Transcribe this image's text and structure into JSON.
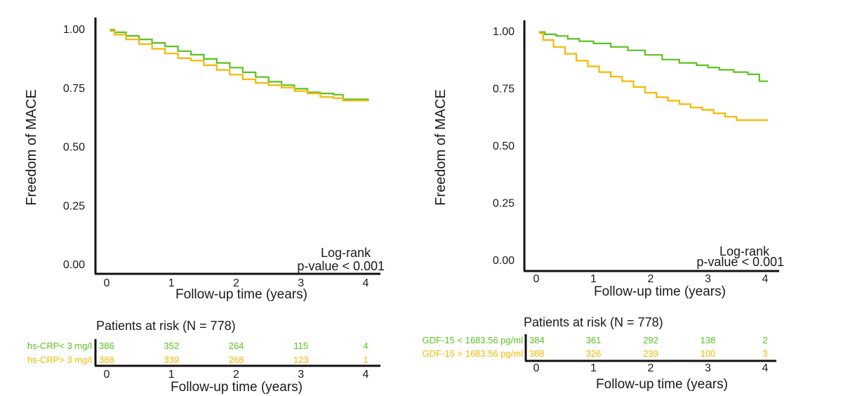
{
  "colors": {
    "green": "#5ac21e",
    "yellow": "#f5b800",
    "axis": "#111111"
  },
  "chart_data": [
    {
      "type": "line",
      "subtype": "kaplan-meier",
      "ylabel": "Freedom of MACE",
      "xlabel": "Follow-up time (years)",
      "xlim": [
        0,
        4
      ],
      "ylim": [
        0,
        1
      ],
      "x_ticks": [
        "0",
        "1",
        "2",
        "3",
        "4"
      ],
      "y_ticks": [
        "0.00",
        "0.25",
        "0.50",
        "0.75",
        "1.00"
      ],
      "annotation_line1": "Log-rank",
      "annotation_line2": "p-value < 0.001",
      "series": [
        {
          "name": "hs-CRP< 3 mg/l",
          "color": "#5ac21e",
          "x": [
            0.05,
            0.12,
            0.3,
            0.5,
            0.7,
            0.9,
            1.1,
            1.3,
            1.5,
            1.7,
            1.9,
            2.1,
            2.3,
            2.5,
            2.7,
            2.9,
            3.1,
            3.3,
            3.5,
            3.65,
            4.05
          ],
          "y": [
            0.996,
            0.985,
            0.97,
            0.955,
            0.94,
            0.925,
            0.905,
            0.89,
            0.872,
            0.855,
            0.835,
            0.815,
            0.795,
            0.775,
            0.76,
            0.745,
            0.73,
            0.725,
            0.72,
            0.7,
            0.7
          ]
        },
        {
          "name": "hs-CRP> 3 mg/l",
          "color": "#f5b800",
          "x": [
            0.05,
            0.12,
            0.3,
            0.5,
            0.7,
            0.9,
            1.1,
            1.3,
            1.5,
            1.7,
            1.9,
            2.1,
            2.3,
            2.5,
            2.7,
            2.9,
            3.1,
            3.3,
            3.5,
            3.65,
            4.05
          ],
          "y": [
            0.99,
            0.975,
            0.955,
            0.935,
            0.915,
            0.895,
            0.875,
            0.865,
            0.845,
            0.825,
            0.805,
            0.785,
            0.77,
            0.76,
            0.75,
            0.735,
            0.725,
            0.71,
            0.705,
            0.695,
            0.695
          ]
        }
      ],
      "risk_table": {
        "title": "Patients at risk (N = 778)",
        "xlabel": "Follow-up time (years)",
        "x_ticks": [
          "0",
          "1",
          "2",
          "3",
          "4"
        ],
        "rows": [
          {
            "group": "hs-CRP< 3 mg/l",
            "color": "#5ac21e",
            "values": [
              "386",
              "352",
              "264",
              "115",
              "4"
            ]
          },
          {
            "group": "hs-CRP> 3 mg/l",
            "color": "#f5b800",
            "values": [
              "388",
              "339",
              "268",
              "123",
              "1"
            ]
          }
        ]
      }
    },
    {
      "type": "line",
      "subtype": "kaplan-meier",
      "ylabel": "Freedom of MACE",
      "xlabel": "Follow-up time (years)",
      "xlim": [
        0,
        4
      ],
      "ylim": [
        0,
        1
      ],
      "x_ticks": [
        "0",
        "1",
        "2",
        "3",
        "4"
      ],
      "y_ticks": [
        "0.00",
        "0.25",
        "0.50",
        "0.75",
        "1.00"
      ],
      "annotation_line1": "Log-rank",
      "annotation_line2": "p-value < 0.001",
      "series": [
        {
          "name": "GDF-15 < 1683.56 pg/ml",
          "color": "#5ac21e",
          "x": [
            0.05,
            0.15,
            0.35,
            0.55,
            0.75,
            1.0,
            1.3,
            1.6,
            1.9,
            2.2,
            2.5,
            2.8,
            3.0,
            3.2,
            3.45,
            3.7,
            3.9,
            4.05
          ],
          "y": [
            0.995,
            0.985,
            0.978,
            0.965,
            0.955,
            0.945,
            0.93,
            0.915,
            0.895,
            0.875,
            0.86,
            0.85,
            0.84,
            0.83,
            0.82,
            0.81,
            0.78,
            0.78
          ]
        },
        {
          "name": "GDF-15 > 1683.56 pg/ml",
          "color": "#f5b800",
          "x": [
            0.05,
            0.12,
            0.3,
            0.5,
            0.7,
            0.9,
            1.1,
            1.3,
            1.5,
            1.7,
            1.9,
            2.1,
            2.3,
            2.5,
            2.7,
            2.9,
            3.1,
            3.3,
            3.5,
            4.05
          ],
          "y": [
            0.99,
            0.96,
            0.93,
            0.9,
            0.87,
            0.845,
            0.82,
            0.8,
            0.78,
            0.755,
            0.73,
            0.71,
            0.695,
            0.68,
            0.665,
            0.655,
            0.64,
            0.625,
            0.61,
            0.61
          ]
        }
      ],
      "risk_table": {
        "title": "Patients at risk (N = 778)",
        "xlabel": "Follow-up time (years)",
        "x_ticks": [
          "0",
          "1",
          "2",
          "3",
          "4"
        ],
        "rows": [
          {
            "group": "GDF-15 < 1683.56 pg/ml",
            "color": "#5ac21e",
            "values": [
              "384",
              "361",
              "292",
              "138",
              "2"
            ]
          },
          {
            "group": "GDF-15 > 1683.56 pg/ml",
            "color": "#f5b800",
            "values": [
              "388",
              "326",
              "239",
              "100",
              "3"
            ]
          }
        ]
      }
    }
  ]
}
